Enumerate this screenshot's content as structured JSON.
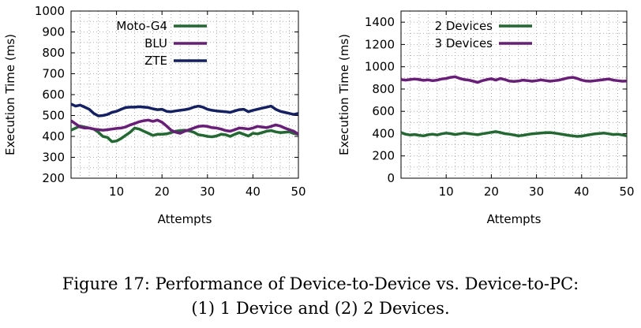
{
  "chart_data": [
    {
      "type": "line",
      "xlabel": "Attempts",
      "ylabel": "Execution Time (ms)",
      "xlim": [
        0,
        50
      ],
      "ylim": [
        200,
        1000
      ],
      "xticks": [
        10,
        20,
        30,
        40,
        50
      ],
      "yticks": [
        200,
        300,
        400,
        500,
        600,
        700,
        800,
        900,
        1000
      ],
      "grid": true,
      "legend": "top-left",
      "x": [
        0,
        1,
        2,
        3,
        4,
        5,
        6,
        7,
        8,
        9,
        10,
        11,
        12,
        13,
        14,
        15,
        16,
        17,
        18,
        19,
        20,
        21,
        22,
        23,
        24,
        25,
        26,
        27,
        28,
        29,
        30,
        31,
        32,
        33,
        34,
        35,
        36,
        37,
        38,
        39,
        40,
        41,
        42,
        43,
        44,
        45,
        46,
        47,
        48,
        49,
        50
      ],
      "series": [
        {
          "name": "Moto-G4",
          "color": "#1e6b2e",
          "values": [
            430,
            440,
            450,
            445,
            440,
            435,
            420,
            400,
            395,
            375,
            378,
            390,
            405,
            420,
            440,
            435,
            425,
            415,
            405,
            410,
            410,
            412,
            418,
            425,
            428,
            430,
            426,
            420,
            408,
            405,
            400,
            398,
            402,
            410,
            408,
            400,
            410,
            418,
            410,
            402,
            415,
            412,
            418,
            425,
            428,
            422,
            418,
            420,
            422,
            414,
            410
          ]
        },
        {
          "name": "BLU",
          "color": "#6c1a7e",
          "values": [
            475,
            460,
            445,
            440,
            440,
            435,
            432,
            430,
            432,
            435,
            438,
            440,
            445,
            455,
            462,
            470,
            475,
            478,
            472,
            478,
            468,
            450,
            430,
            420,
            415,
            425,
            432,
            440,
            448,
            450,
            448,
            442,
            440,
            435,
            428,
            425,
            432,
            440,
            438,
            435,
            440,
            448,
            445,
            442,
            448,
            455,
            450,
            440,
            432,
            425,
            410
          ]
        },
        {
          "name": "ZTE",
          "color": "#12206b",
          "values": [
            555,
            545,
            550,
            540,
            530,
            510,
            498,
            500,
            505,
            515,
            520,
            530,
            538,
            540,
            540,
            542,
            540,
            538,
            532,
            528,
            530,
            520,
            518,
            522,
            525,
            528,
            532,
            540,
            545,
            540,
            530,
            525,
            522,
            520,
            518,
            515,
            522,
            528,
            530,
            518,
            525,
            530,
            535,
            540,
            545,
            530,
            520,
            515,
            510,
            505,
            510
          ]
        }
      ]
    },
    {
      "type": "line",
      "xlabel": "Attempts",
      "ylabel": "Execution Time (ms)",
      "xlim": [
        0,
        50
      ],
      "ylim": [
        0,
        1500
      ],
      "xticks": [
        10,
        20,
        30,
        40,
        50
      ],
      "yticks": [
        0,
        200,
        400,
        600,
        800,
        1000,
        1200,
        1400
      ],
      "grid": true,
      "legend": "top-left",
      "x": [
        0,
        1,
        2,
        3,
        4,
        5,
        6,
        7,
        8,
        9,
        10,
        11,
        12,
        13,
        14,
        15,
        16,
        17,
        18,
        19,
        20,
        21,
        22,
        23,
        24,
        25,
        26,
        27,
        28,
        29,
        30,
        31,
        32,
        33,
        34,
        35,
        36,
        37,
        38,
        39,
        40,
        41,
        42,
        43,
        44,
        45,
        46,
        47,
        48,
        49,
        50
      ],
      "series": [
        {
          "name": "2 Devices",
          "color": "#1e6b2e",
          "values": [
            410,
            395,
            388,
            392,
            385,
            380,
            390,
            395,
            388,
            398,
            405,
            400,
            392,
            398,
            405,
            400,
            395,
            390,
            398,
            405,
            412,
            418,
            410,
            400,
            395,
            388,
            380,
            385,
            392,
            398,
            402,
            405,
            408,
            410,
            405,
            398,
            392,
            385,
            380,
            375,
            378,
            385,
            392,
            398,
            402,
            405,
            398,
            392,
            395,
            388,
            380
          ]
        },
        {
          "name": "3 Devices",
          "color": "#6c1a7e",
          "values": [
            885,
            880,
            885,
            890,
            885,
            878,
            882,
            875,
            880,
            890,
            895,
            905,
            910,
            895,
            885,
            880,
            870,
            860,
            875,
            885,
            892,
            880,
            895,
            885,
            872,
            868,
            872,
            880,
            876,
            870,
            875,
            882,
            876,
            870,
            875,
            880,
            890,
            900,
            905,
            895,
            880,
            872,
            870,
            875,
            880,
            885,
            890,
            880,
            875,
            870,
            872
          ]
        }
      ]
    }
  ],
  "caption": {
    "line1": "Figure 17: Performance of Device-to-Device vs. Device-to-PC:",
    "line2": "(1) 1 Device and (2) 2 Devices."
  }
}
